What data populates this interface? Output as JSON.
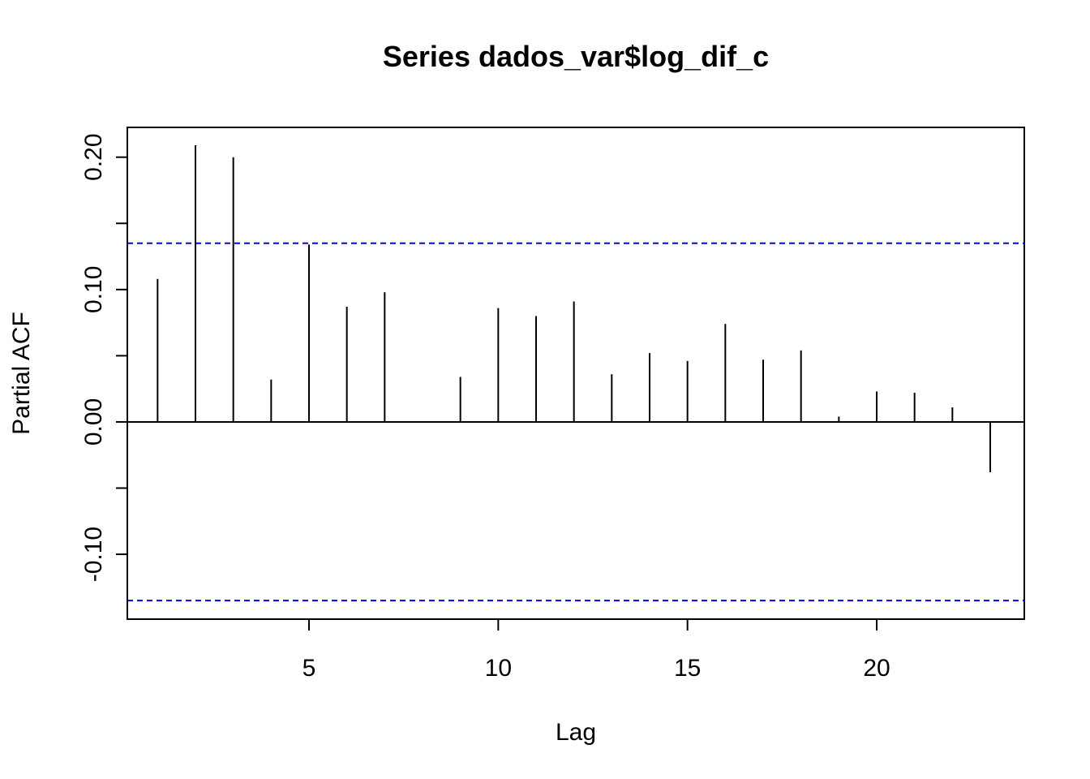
{
  "chart_data": {
    "type": "bar",
    "title": "Series  dados_var$log_dif_c",
    "xlabel": "Lag",
    "ylabel": "Partial ACF",
    "xlim": [
      0.2,
      23.9
    ],
    "ylim": [
      -0.149,
      0.2225
    ],
    "x_ticks": [
      5,
      10,
      15,
      20
    ],
    "x_tick_labels": [
      "5",
      "10",
      "15",
      "20"
    ],
    "y_ticks": [
      -0.15,
      -0.1,
      -0.05,
      0.0,
      0.05,
      0.1,
      0.15,
      0.2
    ],
    "y_tick_labels": [
      "",
      "-0.10",
      "",
      "0.00",
      "",
      "0.10",
      "",
      "0.20"
    ],
    "lags": [
      1,
      2,
      3,
      4,
      5,
      6,
      7,
      8,
      9,
      10,
      11,
      12,
      13,
      14,
      15,
      16,
      17,
      18,
      19,
      20,
      21,
      22,
      23
    ],
    "values": [
      0.108,
      0.209,
      0.2,
      0.032,
      0.134,
      0.087,
      0.098,
      0.0,
      0.034,
      0.086,
      0.08,
      0.091,
      0.036,
      0.052,
      0.046,
      0.074,
      0.047,
      0.054,
      0.004,
      0.023,
      0.022,
      0.011,
      -0.038
    ],
    "confidence_limits": [
      0.135,
      -0.135
    ],
    "grid": false,
    "colors": {
      "bars": "#000000",
      "confidence": "#0000ff",
      "zero_line": "#000000",
      "frame": "#000000"
    }
  }
}
